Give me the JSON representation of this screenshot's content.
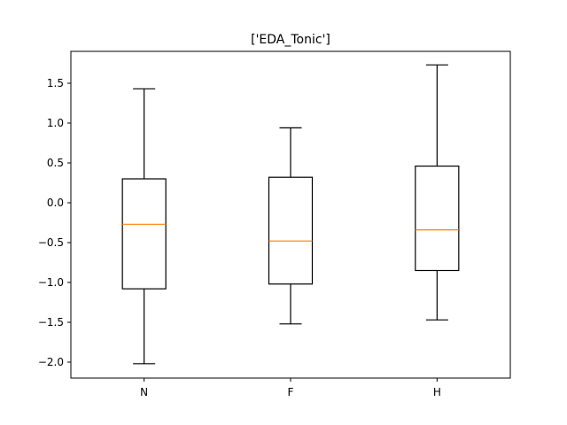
{
  "chart_data": {
    "type": "box",
    "title": "['EDA_Tonic']",
    "xlabel": "",
    "ylabel": "",
    "ylim": [
      -2.2,
      1.9
    ],
    "yticks": [
      -2.0,
      -1.5,
      -1.0,
      -0.5,
      0.0,
      0.5,
      1.0,
      1.5
    ],
    "ytick_labels": [
      "−2.0",
      "−1.5",
      "−1.0",
      "−0.5",
      "0.0",
      "0.5",
      "1.0",
      "1.5"
    ],
    "grid": false,
    "categories": [
      "N",
      "F",
      "H"
    ],
    "boxes": [
      {
        "label": "N",
        "whisker_low": -2.02,
        "q1": -1.08,
        "median": -0.27,
        "q3": 0.3,
        "whisker_high": 1.43
      },
      {
        "label": "F",
        "whisker_low": -1.52,
        "q1": -1.02,
        "median": -0.48,
        "q3": 0.32,
        "whisker_high": 0.94
      },
      {
        "label": "H",
        "whisker_low": -1.47,
        "q1": -0.85,
        "median": -0.34,
        "q3": 0.46,
        "whisker_high": 1.73
      }
    ],
    "colors": {
      "box": "#000000",
      "median": "#ff7f0e",
      "axes": "#000000"
    }
  }
}
